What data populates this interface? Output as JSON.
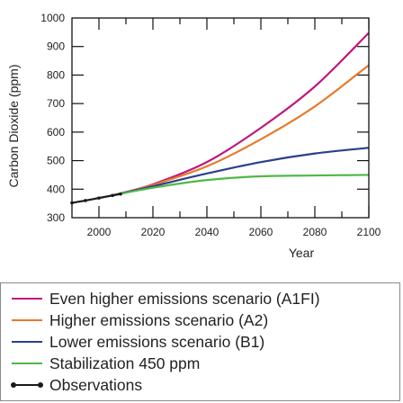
{
  "chart_data": {
    "type": "line",
    "title": "",
    "xlabel": "Year",
    "ylabel": "Carbon Dioxide (ppm)",
    "xlim": [
      1990,
      2100
    ],
    "ylim": [
      300,
      1000
    ],
    "x_ticks": [
      "2000",
      "2020",
      "2040",
      "2060",
      "2080",
      "2100"
    ],
    "y_ticks": [
      "300",
      "400",
      "500",
      "600",
      "700",
      "800",
      "900",
      "1000"
    ],
    "grid": false,
    "legend_position": "bottom",
    "series": [
      {
        "name": "Even higher emissions scenario (A1FI)",
        "color": "#c0187d",
        "style": "solid",
        "x": [
          2005,
          2020,
          2040,
          2060,
          2080,
          2100
        ],
        "y": [
          378,
          417,
          495,
          615,
          760,
          948
        ]
      },
      {
        "name": "Higher emissions scenario (A2)",
        "color": "#e87a2a",
        "style": "solid",
        "x": [
          2005,
          2020,
          2040,
          2060,
          2080,
          2100
        ],
        "y": [
          378,
          415,
          480,
          575,
          690,
          835
        ]
      },
      {
        "name": "Lower emissions scenario (B1)",
        "color": "#2b3f8c",
        "style": "solid",
        "x": [
          2005,
          2020,
          2040,
          2060,
          2080,
          2100
        ],
        "y": [
          378,
          410,
          455,
          495,
          525,
          545
        ]
      },
      {
        "name": "Stabilization 450 ppm",
        "color": "#4fb847",
        "style": "solid",
        "x": [
          2005,
          2020,
          2040,
          2060,
          2080,
          2100
        ],
        "y": [
          378,
          405,
          432,
          445,
          448,
          450
        ]
      },
      {
        "name": "Observations",
        "color": "#1a1a1a",
        "style": "dotted-line",
        "x": [
          1990,
          1995,
          2000,
          2005,
          2008
        ],
        "y": [
          352,
          360,
          369,
          378,
          383
        ]
      }
    ]
  }
}
